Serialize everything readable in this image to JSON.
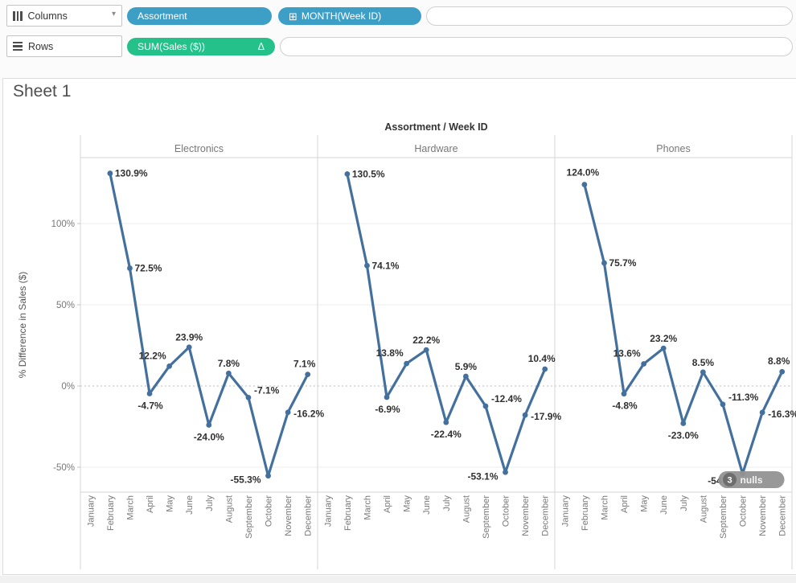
{
  "icons": {
    "chevron_down": "▾",
    "plus_box": "⊞",
    "delta": "Δ"
  },
  "shelves": {
    "columns": {
      "label": "Columns",
      "pills": [
        {
          "text": "Assortment"
        },
        {
          "text": "MONTH(Week ID)"
        }
      ]
    },
    "rows": {
      "label": "Rows",
      "pills": [
        {
          "text": "SUM(Sales ($))"
        }
      ]
    }
  },
  "sheet": {
    "title": "Sheet 1"
  },
  "chart_data": {
    "type": "line",
    "title": "Assortment / Week ID",
    "ylabel": "% Difference in Sales ($)",
    "x_categories": [
      "January",
      "February",
      "March",
      "April",
      "May",
      "June",
      "July",
      "August",
      "September",
      "October",
      "November",
      "December"
    ],
    "ytick_labels": [
      "100%",
      "50%",
      "0%",
      "-50%"
    ],
    "ytick_values": [
      100,
      50,
      0,
      -50
    ],
    "ylim": [
      -65,
      140
    ],
    "grid": "horizontal",
    "zero_line": "dotted",
    "legend_position": "none",
    "line_color": "#44709d",
    "series": [
      {
        "name": "Electronics",
        "values": [
          null,
          130.9,
          72.5,
          -4.7,
          12.2,
          23.9,
          -24.0,
          7.8,
          -7.1,
          -55.3,
          -16.2,
          7.1
        ],
        "labels": [
          "",
          "130.9%",
          "72.5%",
          "-4.7%",
          "12.2%",
          "23.9%",
          "-24.0%",
          "7.8%",
          "-7.1%",
          "-55.3%",
          "-16.2%",
          "7.1%"
        ]
      },
      {
        "name": "Hardware",
        "values": [
          null,
          130.5,
          74.1,
          -6.9,
          13.8,
          22.2,
          -22.4,
          5.9,
          -12.4,
          -53.1,
          -17.9,
          10.4
        ],
        "labels": [
          "",
          "130.5%",
          "74.1%",
          "-6.9%",
          "13.8%",
          "22.2%",
          "-22.4%",
          "5.9%",
          "-12.4%",
          "-53.1%",
          "-17.9%",
          "10.4%"
        ]
      },
      {
        "name": "Phones",
        "values": [
          null,
          124.0,
          75.7,
          -4.8,
          13.6,
          23.2,
          -23.0,
          8.5,
          -11.3,
          -54.0,
          -16.3,
          8.8
        ],
        "labels": [
          "",
          "124.0%",
          "75.7%",
          "-4.8%",
          "13.6%",
          "23.2%",
          "-23.0%",
          "8.5%",
          "-11.3%",
          "-54",
          "-16.3%",
          "8.8%"
        ],
        "null_indicator": {
          "count": "3",
          "text": "nulls"
        }
      }
    ]
  },
  "colors": {
    "pill_blue": "#3e9fc6",
    "pill_green": "#25c18b",
    "line_blue": "#44709d",
    "label_dark": "#303030",
    "axis_gray": "#787878",
    "border_gray": "#d6d6d6",
    "grid_gray": "#ececec",
    "zero_gray": "#bdbdbd",
    "badge_bg": "#929292",
    "badge_circle": "#6e6e6e"
  }
}
